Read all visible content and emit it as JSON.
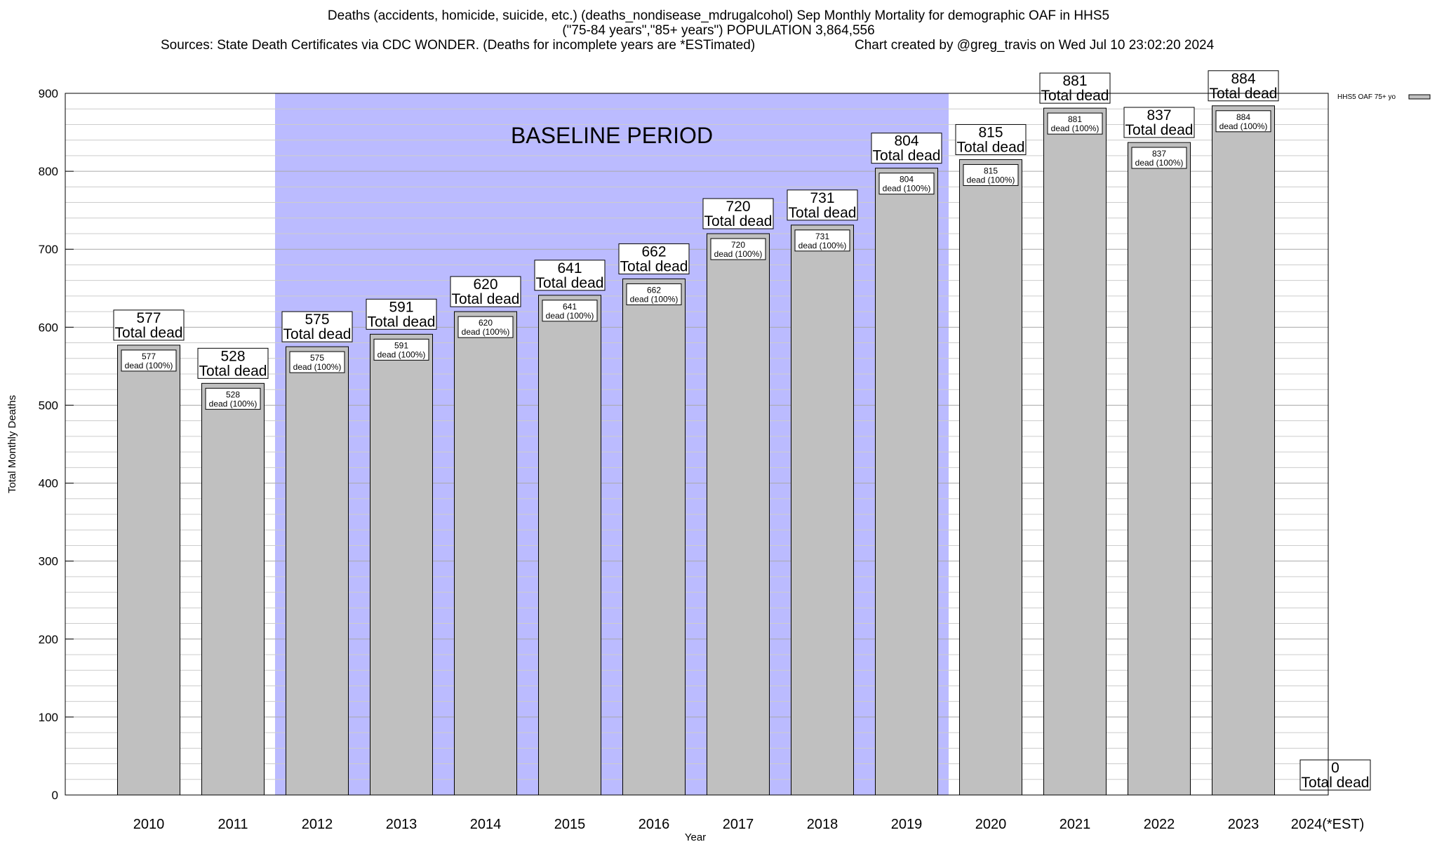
{
  "title": {
    "line1": "Deaths (accidents, homicide, suicide, etc.) (deaths_nondisease_mdrugalcohol) Sep Monthly Mortality for demographic OAF in HHS5",
    "line2": "(\"75-84 years\",\"85+ years\") POPULATION 3,864,556",
    "sources": "Sources: State Death Certificates via CDC WONDER. (Deaths for incomplete years are *ESTimated)",
    "credit": "Chart created by @greg_travis on Wed Jul 10 23:02:20 2024"
  },
  "colors": {
    "bar_fill": "#c0c0c0",
    "baseline_shade": "#bbbbff",
    "grid": "#cccccc"
  },
  "chart_data": {
    "type": "bar",
    "categories": [
      "2010",
      "2011",
      "2012",
      "2013",
      "2014",
      "2015",
      "2016",
      "2017",
      "2018",
      "2019",
      "2020",
      "2021",
      "2022",
      "2023",
      "2024(*EST)"
    ],
    "series": [
      {
        "name": "HHS5 OAF 75+ yo",
        "values": [
          577,
          528,
          575,
          591,
          620,
          641,
          662,
          720,
          731,
          804,
          815,
          881,
          837,
          884,
          0
        ]
      }
    ],
    "top_labels": [
      "Total dead",
      "Total dead",
      "Total dead",
      "Total dead",
      "Total dead",
      "Total dead",
      "Total dead",
      "Total dead",
      "Total dead",
      "Total dead",
      "Total dead",
      "Total dead",
      "Total dead",
      "Total dead",
      "Total dead"
    ],
    "inner_labels": [
      "dead (100%)",
      "dead (100%)",
      "dead (100%)",
      "dead (100%)",
      "dead (100%)",
      "dead (100%)",
      "dead (100%)",
      "dead (100%)",
      "dead (100%)",
      "dead (100%)",
      "dead (100%)",
      "dead (100%)",
      "dead (100%)",
      "dead (100%)",
      ""
    ],
    "xlabel": "Year",
    "ylabel": "Total Monthly Deaths",
    "ylim": [
      0,
      900
    ],
    "yticks": [
      0,
      100,
      200,
      300,
      400,
      500,
      600,
      700,
      800,
      900
    ],
    "minor_grid_step": 20,
    "grid": true,
    "legend_position": "top-right",
    "baseline": {
      "label": "BASELINE PERIOD",
      "start": "2012",
      "end": "2019"
    }
  }
}
